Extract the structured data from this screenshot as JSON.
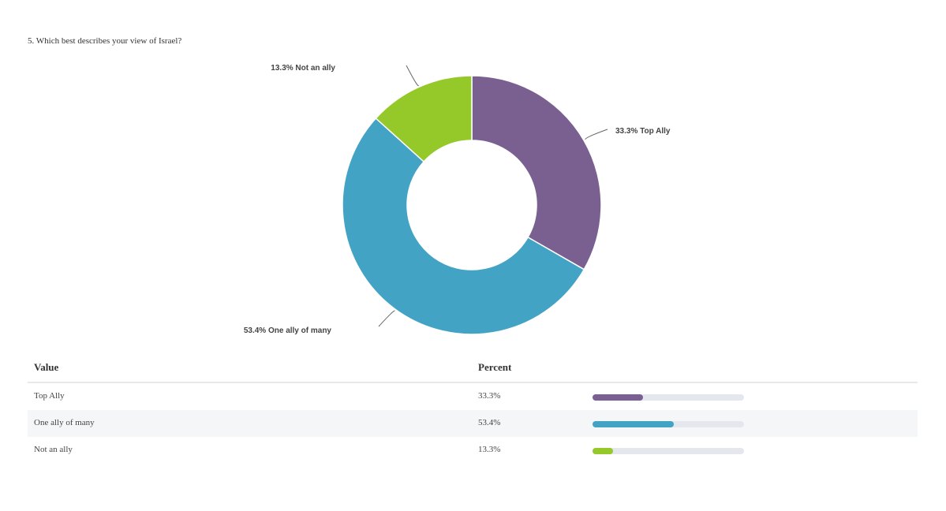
{
  "question": "5. Which best describes your view of Israel?",
  "chart_data": {
    "type": "pie",
    "donut": true,
    "slices": [
      {
        "label": "Top Ally",
        "value": 33.3,
        "display": "33.3% Top Ally",
        "color": "#7a5f91"
      },
      {
        "label": "One ally of many",
        "value": 53.4,
        "display": "53.4% One ally of many",
        "color": "#43a3c5"
      },
      {
        "label": "Not an ally",
        "value": 13.3,
        "display": "13.3% Not an ally",
        "color": "#95c829"
      }
    ]
  },
  "table": {
    "headers": {
      "value": "Value",
      "percent": "Percent"
    },
    "rows": [
      {
        "value": "Top Ally",
        "percent": "33.3%",
        "fraction": 0.333,
        "color": "#7a5f91"
      },
      {
        "value": "One ally of many",
        "percent": "53.4%",
        "fraction": 0.534,
        "color": "#43a3c5"
      },
      {
        "value": "Not an ally",
        "percent": "13.3%",
        "fraction": 0.133,
        "color": "#95c829"
      }
    ]
  }
}
